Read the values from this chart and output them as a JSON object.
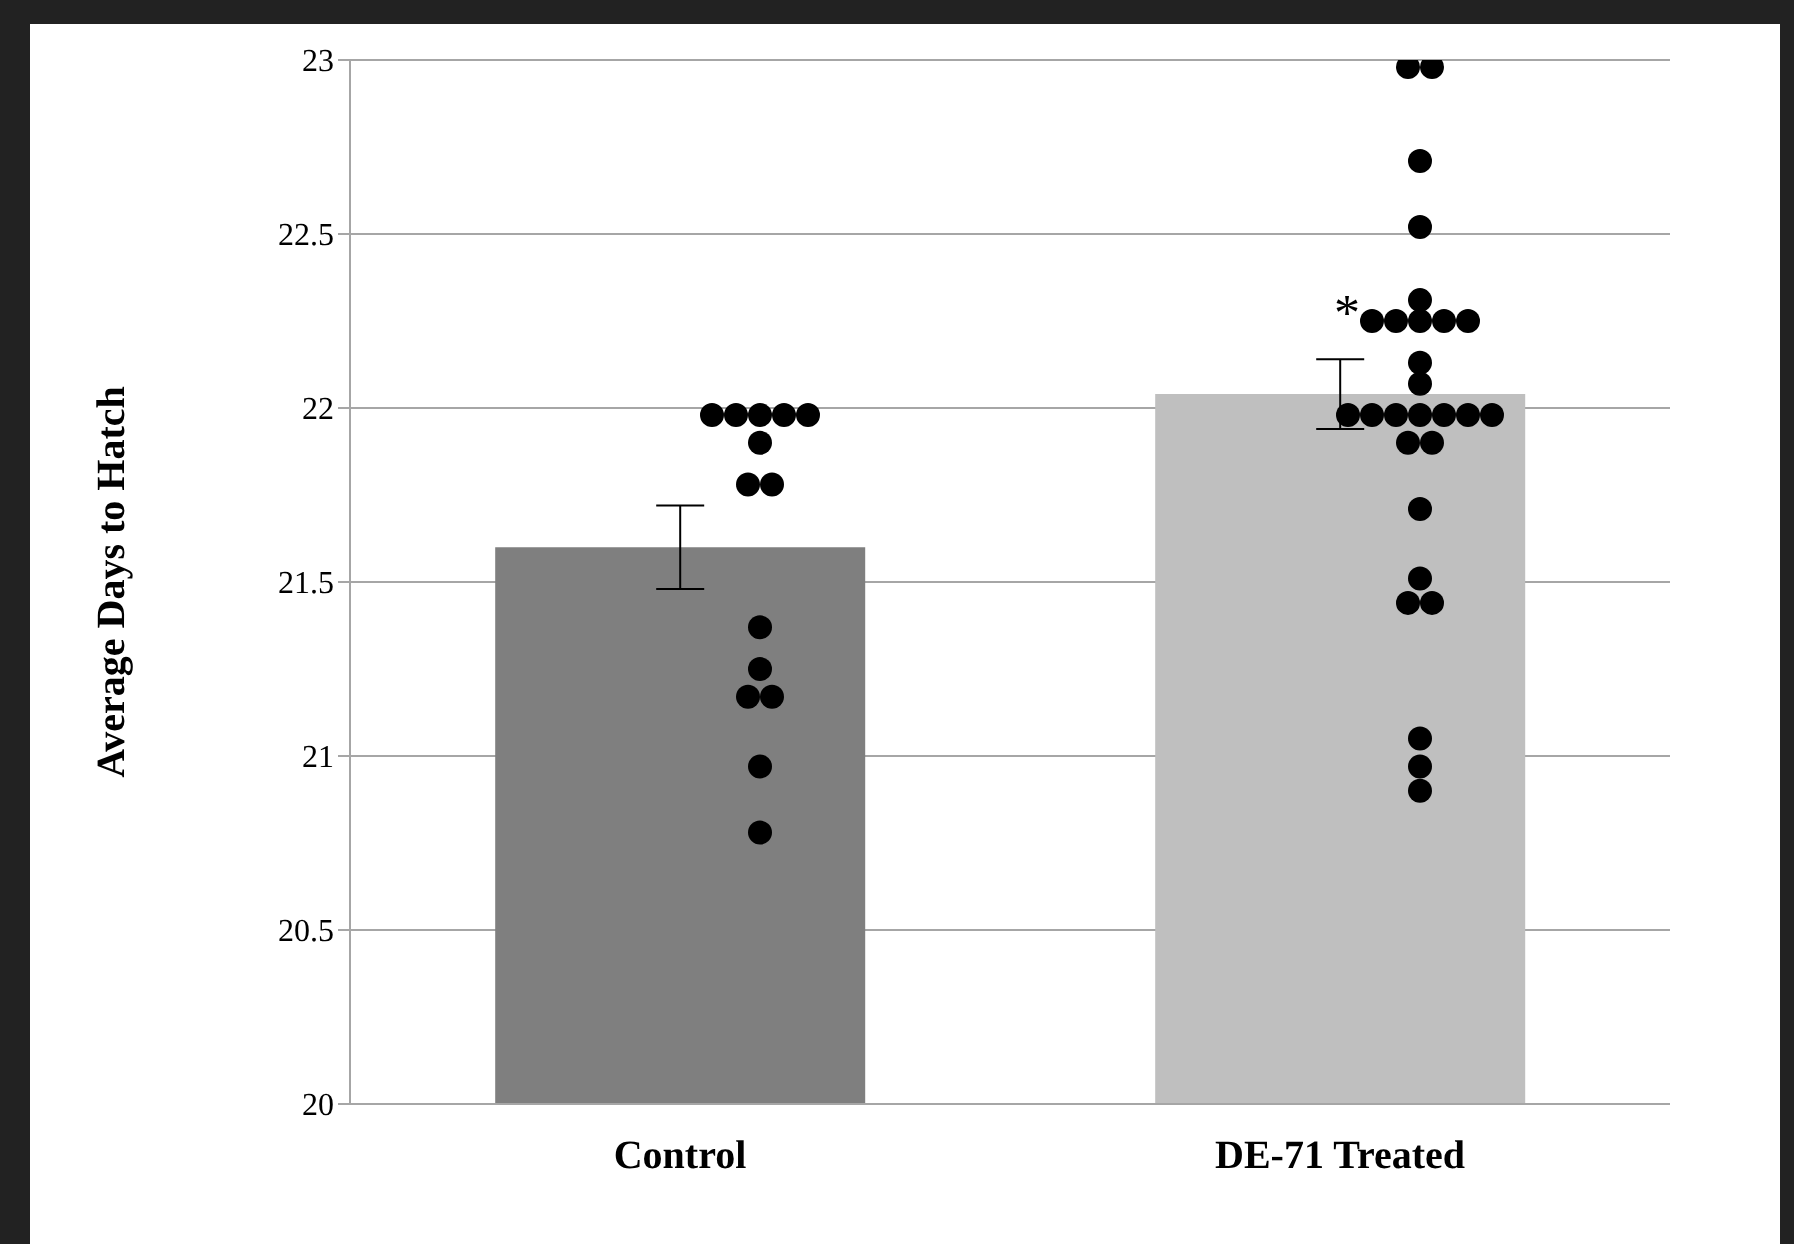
{
  "chart_data": {
    "type": "bar",
    "ylabel": "Average Days to Hatch",
    "categories": [
      "Control",
      "DE-71 Treated"
    ],
    "values": [
      21.6,
      22.04
    ],
    "colors": [
      "#7f7f7f",
      "#bfbfbf"
    ],
    "errors": [
      0.12,
      0.1
    ],
    "series": [
      {
        "type": "scatter",
        "color": "#000000",
        "x": [
          "Control",
          "Control",
          "Control",
          "Control",
          "Control",
          "Control",
          "Control",
          "Control",
          "Control",
          "Control",
          "Control",
          "Control",
          "Control",
          "Control",
          "DE-71 Treated",
          "DE-71 Treated",
          "DE-71 Treated",
          "DE-71 Treated",
          "DE-71 Treated",
          "DE-71 Treated",
          "DE-71 Treated",
          "DE-71 Treated",
          "DE-71 Treated",
          "DE-71 Treated",
          "DE-71 Treated",
          "DE-71 Treated",
          "DE-71 Treated",
          "DE-71 Treated",
          "DE-71 Treated",
          "DE-71 Treated",
          "DE-71 Treated",
          "DE-71 Treated",
          "DE-71 Treated",
          "DE-71 Treated",
          "DE-71 Treated",
          "DE-71 Treated",
          "DE-71 Treated",
          "DE-71 Treated",
          "DE-71 Treated",
          "DE-71 Treated",
          "DE-71 Treated",
          "DE-71 Treated"
        ],
        "values": [
          21.98,
          21.98,
          21.98,
          21.98,
          21.98,
          21.9,
          21.78,
          21.78,
          21.37,
          21.25,
          21.17,
          21.17,
          20.97,
          20.78,
          22.98,
          22.98,
          22.71,
          22.52,
          22.31,
          22.25,
          22.25,
          22.25,
          22.25,
          22.25,
          22.13,
          22.07,
          21.98,
          21.98,
          21.98,
          21.98,
          21.98,
          21.98,
          21.98,
          21.9,
          21.9,
          21.71,
          21.51,
          21.44,
          21.44,
          21.05,
          20.97,
          20.9
        ]
      }
    ],
    "ylim": [
      20,
      23
    ],
    "yticks": [
      20,
      20.5,
      21,
      21.5,
      22,
      22.5,
      23
    ],
    "grid": "y",
    "legend": false,
    "marker": "circle",
    "annotations": [
      "*"
    ]
  }
}
